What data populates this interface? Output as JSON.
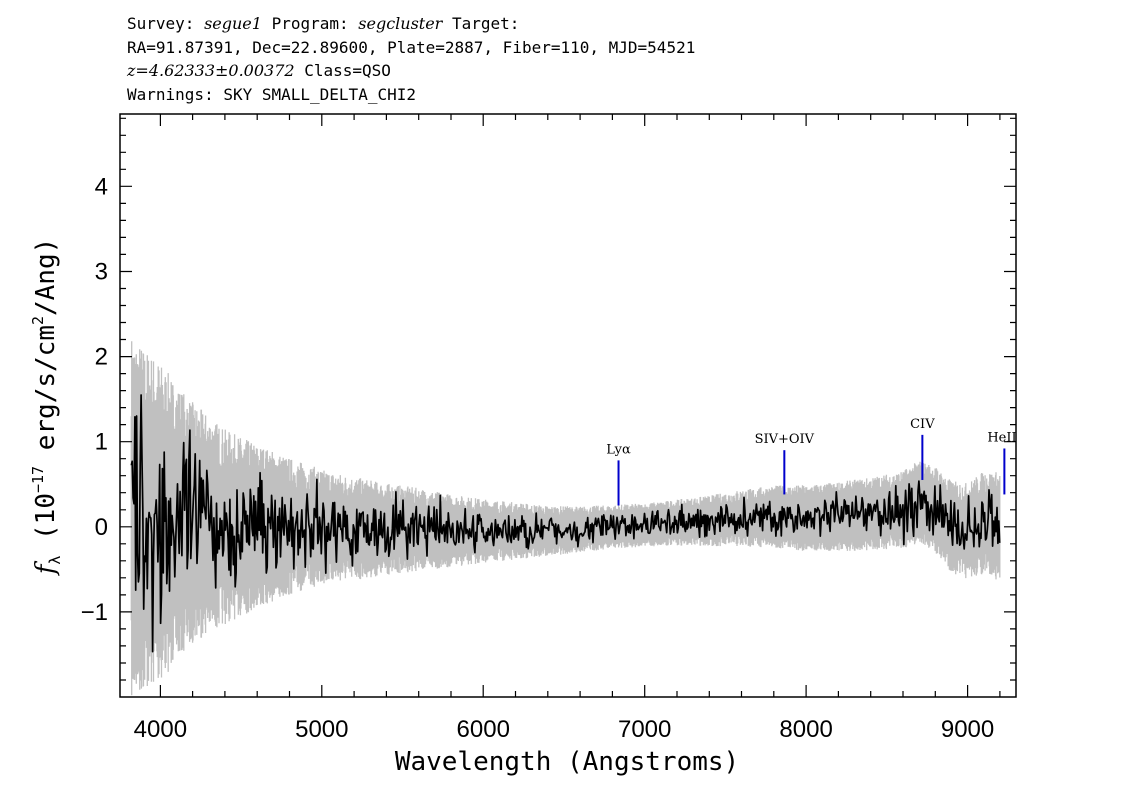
{
  "header": {
    "line1": {
      "survey_key": "Survey: ",
      "survey": "segue1",
      "program_key": " Program: ",
      "program": "segcluster",
      "target_key": " Target:"
    },
    "line2": "RA=91.87391, Dec=22.89600, Plate=2887, Fiber=110, MJD=54521",
    "line3": {
      "redshift": "z=4.62333±0.00372",
      "class": " Class=QSO"
    },
    "line4": "Warnings: SKY SMALL_DELTA_CHI2"
  },
  "chart_data": {
    "type": "line",
    "xlabel": "Wavelength (Angstroms)",
    "ylabel": "f_λ (10^-17 erg/s/cm^2/Ang)",
    "ylabel_parts": {
      "f": "f",
      "lambda": "λ",
      "open": " (10",
      "exp": "−17",
      "unit": " erg/s/cm",
      "sq": "2",
      "close": "/Ang)"
    },
    "xlim": [
      3750,
      9300
    ],
    "ylim": [
      -2.0,
      4.85
    ],
    "xticks": [
      4000,
      5000,
      6000,
      7000,
      8000,
      9000
    ],
    "xtick_labels": [
      "4000",
      "5000",
      "6000",
      "7000",
      "8000",
      "9000"
    ],
    "yticks": [
      -1,
      0,
      1,
      2,
      3,
      4
    ],
    "ytick_labels": [
      "−1",
      "0",
      "1",
      "2",
      "3",
      "4"
    ],
    "grid": false,
    "series": [
      {
        "role": "noise-envelope",
        "color": "#c0c0c0",
        "x": [
          3820,
          3900,
          4000,
          4100,
          4200,
          4300,
          4400,
          4500,
          4600,
          4700,
          4800,
          4900,
          5000,
          5200,
          5400,
          5600,
          5800,
          6000,
          6200,
          6400,
          6600,
          6800,
          7000,
          7200,
          7400,
          7600,
          7800,
          8000,
          8200,
          8400,
          8600,
          8700,
          8800,
          8900,
          9000,
          9100,
          9200
        ],
        "y": [
          1.6,
          1.5,
          1.4,
          1.2,
          1.05,
          0.95,
          0.85,
          0.78,
          0.72,
          0.66,
          0.6,
          0.55,
          0.5,
          0.45,
          0.4,
          0.36,
          0.32,
          0.28,
          0.25,
          0.22,
          0.2,
          0.19,
          0.19,
          0.2,
          0.22,
          0.25,
          0.27,
          0.29,
          0.3,
          0.32,
          0.34,
          0.36,
          0.38,
          0.4,
          0.42,
          0.45,
          0.48
        ]
      },
      {
        "role": "flux",
        "color": "#000000",
        "x": [
          3820,
          4000,
          4200,
          4400,
          4600,
          4800,
          5000,
          5200,
          5400,
          5600,
          5800,
          6000,
          6200,
          6400,
          6600,
          6800,
          7000,
          7200,
          7400,
          7600,
          7800,
          8000,
          8200,
          8400,
          8600,
          8700,
          8800,
          8900,
          9000,
          9100,
          9200
        ],
        "y": [
          0.1,
          0.05,
          0.05,
          0.0,
          0.0,
          0.0,
          0.0,
          -0.02,
          -0.03,
          -0.03,
          -0.05,
          -0.05,
          -0.05,
          -0.05,
          -0.03,
          0.0,
          0.02,
          0.05,
          0.07,
          0.1,
          0.12,
          0.1,
          0.12,
          0.15,
          0.2,
          0.3,
          0.2,
          0.0,
          -0.05,
          0.05,
          0.0
        ]
      }
    ],
    "line_markers": [
      {
        "label": "Lyα",
        "x": 6838,
        "y_bottom": 0.25,
        "y_top": 0.78
      },
      {
        "label": "SIV+OIV",
        "x": 7865,
        "y_bottom": 0.38,
        "y_top": 0.9
      },
      {
        "label": "CIV",
        "x": 8720,
        "y_bottom": 0.55,
        "y_top": 1.08
      },
      {
        "label": "HeII",
        "x": 9228,
        "y_bottom": 0.38,
        "y_top": 0.92
      }
    ],
    "marker_color": "#0000cc"
  }
}
